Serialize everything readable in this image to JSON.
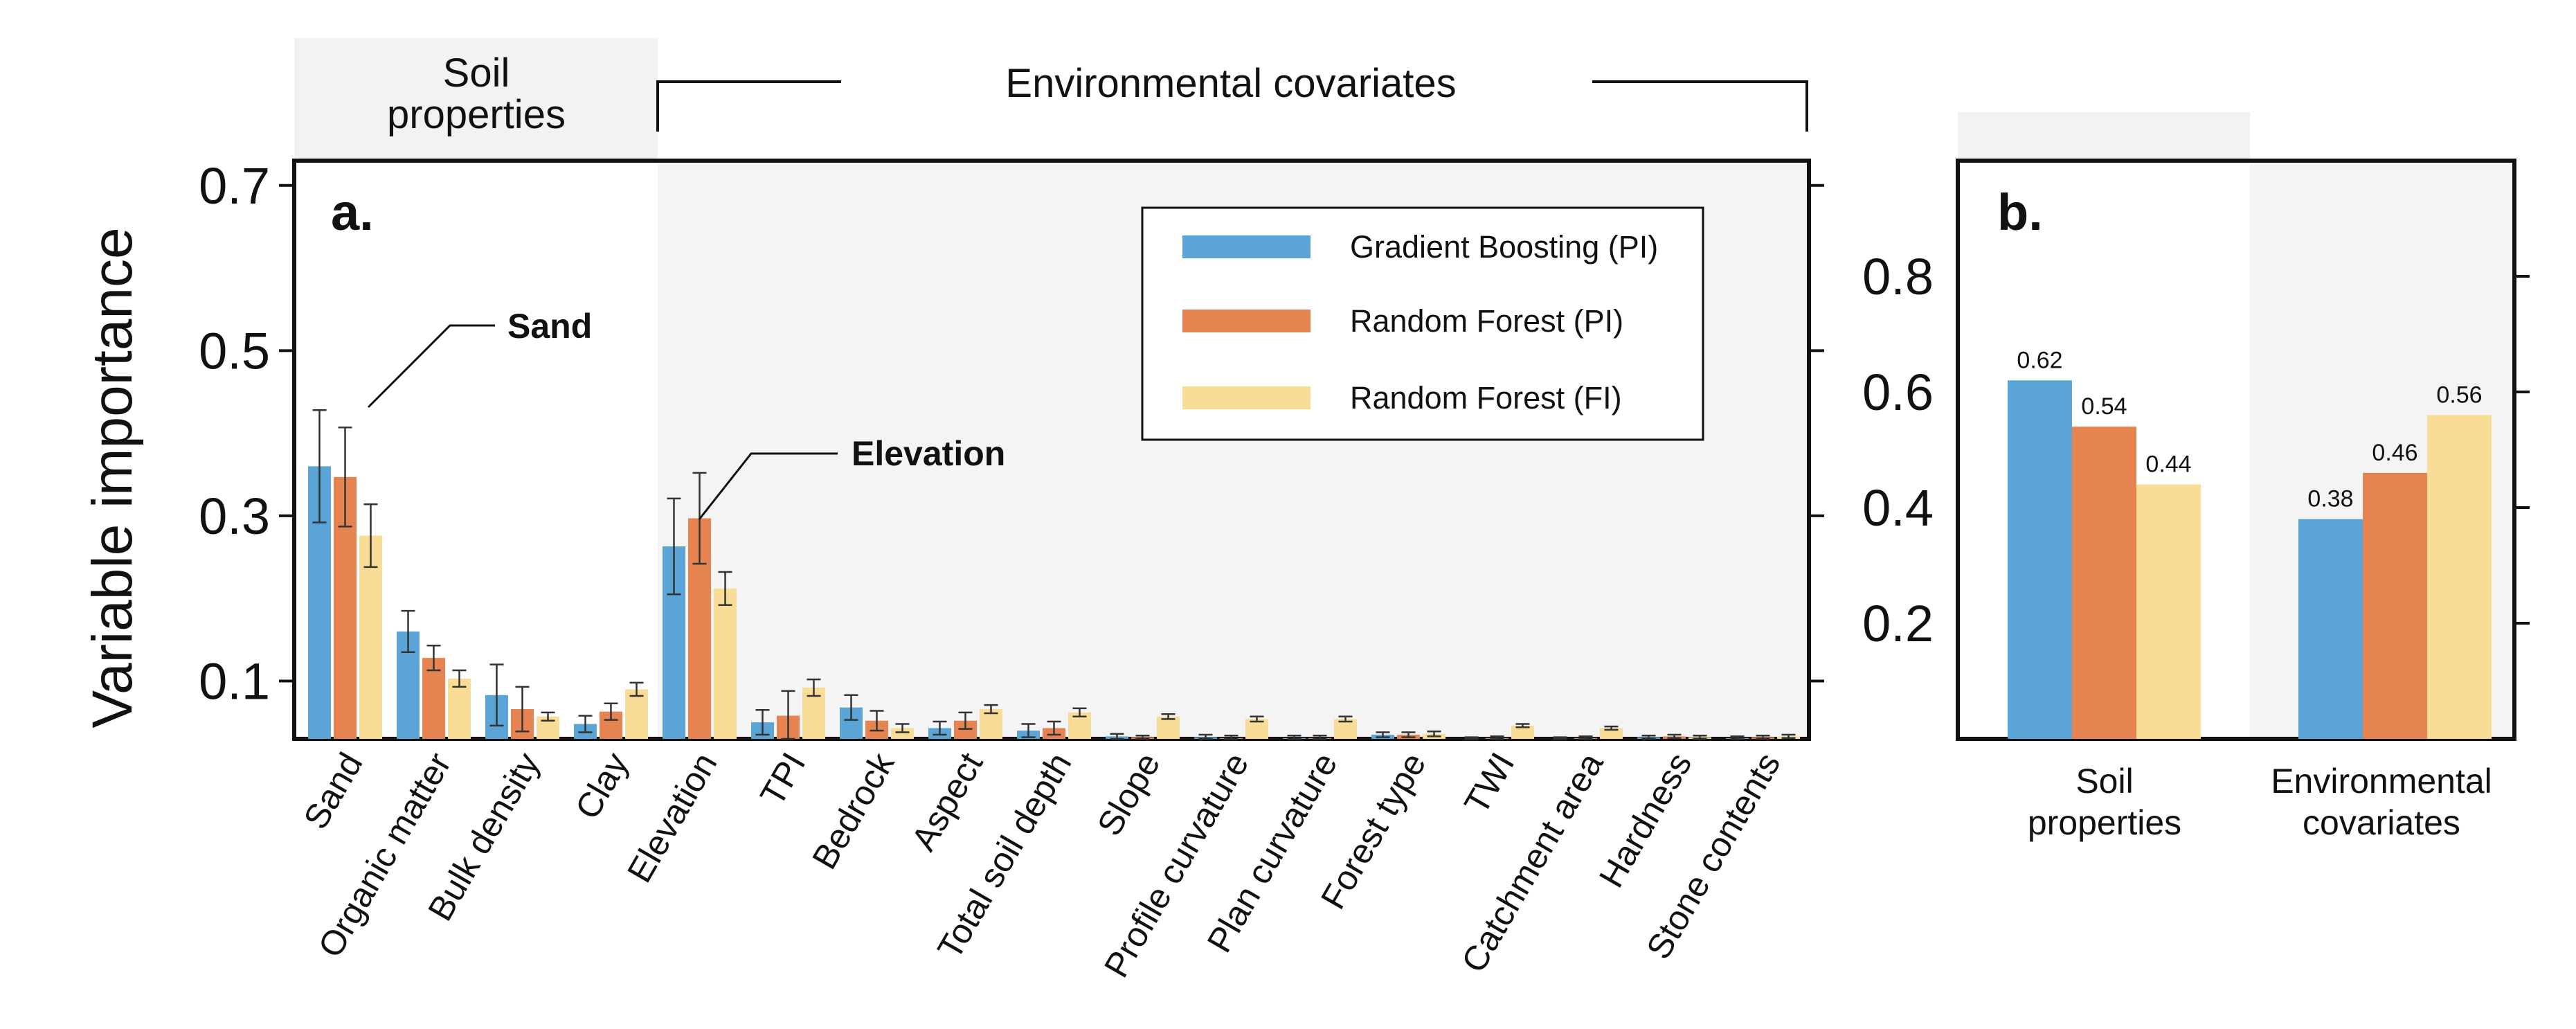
{
  "chart_data": [
    {
      "type": "bar",
      "panel_label": "a.",
      "ylabel": "Variable importance",
      "ylim": [
        0.03,
        0.73
      ],
      "yticks": [
        0.1,
        0.3,
        0.5,
        0.7
      ],
      "ytick_labels": [
        "0.1",
        "0.3",
        "0.5",
        "0.7"
      ],
      "grid": false,
      "legend_position": "top-right",
      "header_soil": "Soil properties",
      "header_env": "Environmental covariates",
      "categories": [
        "Sand",
        "Organic matter",
        "Bulk density",
        "Clay",
        "Elevation",
        "TPI",
        "Bedrock",
        "Aspect",
        "Total soil depth",
        "Slope",
        "Profile curvature",
        "Plan curvature",
        "Forest type",
        "TWI",
        "Catchment area",
        "Hardness",
        "Stone contents"
      ],
      "soil_property_count": 4,
      "series": [
        {
          "name": "Gradient Boosting (PI)",
          "color": "#5aa5d6",
          "values": [
            0.36,
            0.16,
            0.083,
            0.048,
            0.263,
            0.05,
            0.068,
            0.043,
            0.04,
            0.033,
            0.032,
            0.031,
            0.035,
            0.03,
            0.03,
            0.032,
            0.031
          ],
          "errors": [
            0.068,
            0.025,
            0.037,
            0.01,
            0.058,
            0.015,
            0.015,
            0.008,
            0.008,
            0.003,
            0.003,
            0.003,
            0.003,
            0.002,
            0.002,
            0.002,
            0.002
          ]
        },
        {
          "name": "Random Forest (PI)",
          "color": "#e68451",
          "values": [
            0.347,
            0.128,
            0.066,
            0.063,
            0.297,
            0.058,
            0.052,
            0.052,
            0.043,
            0.032,
            0.031,
            0.031,
            0.035,
            0.031,
            0.031,
            0.033,
            0.032
          ],
          "errors": [
            0.06,
            0.015,
            0.027,
            0.01,
            0.055,
            0.03,
            0.012,
            0.01,
            0.008,
            0.002,
            0.003,
            0.003,
            0.003,
            0.002,
            0.002,
            0.002,
            0.002
          ]
        },
        {
          "name": "Random Forest (FI)",
          "color": "#f9dc95",
          "values": [
            0.276,
            0.103,
            0.057,
            0.09,
            0.212,
            0.092,
            0.043,
            0.066,
            0.062,
            0.057,
            0.054,
            0.054,
            0.036,
            0.046,
            0.043,
            0.032,
            0.033
          ],
          "errors": [
            0.038,
            0.01,
            0.005,
            0.008,
            0.02,
            0.01,
            0.005,
            0.005,
            0.005,
            0.003,
            0.003,
            0.003,
            0.003,
            0.002,
            0.002,
            0.002,
            0.002
          ]
        }
      ],
      "annotations": [
        {
          "text": "Sand",
          "category": "Sand"
        },
        {
          "text": "Elevation",
          "category": "Elevation"
        }
      ]
    },
    {
      "type": "bar",
      "panel_label": "b.",
      "ylim": [
        0.0,
        1.0
      ],
      "yticks": [
        0.2,
        0.4,
        0.6,
        0.8
      ],
      "ytick_labels": [
        "0.2",
        "0.4",
        "0.6",
        "0.8"
      ],
      "grid": false,
      "categories": [
        "Soil properties",
        "Environmental covariates"
      ],
      "series": [
        {
          "name": "Gradient Boosting (PI)",
          "color": "#5aa5d6",
          "values": [
            0.62,
            0.38
          ],
          "labels": [
            "0.62",
            "0.38"
          ]
        },
        {
          "name": "Random Forest (PI)",
          "color": "#e68451",
          "values": [
            0.54,
            0.46
          ],
          "labels": [
            "0.54",
            "0.46"
          ]
        },
        {
          "name": "Random Forest (FI)",
          "color": "#f9dc95",
          "values": [
            0.44,
            0.56
          ],
          "labels": [
            "0.44",
            "0.56"
          ]
        }
      ]
    }
  ]
}
